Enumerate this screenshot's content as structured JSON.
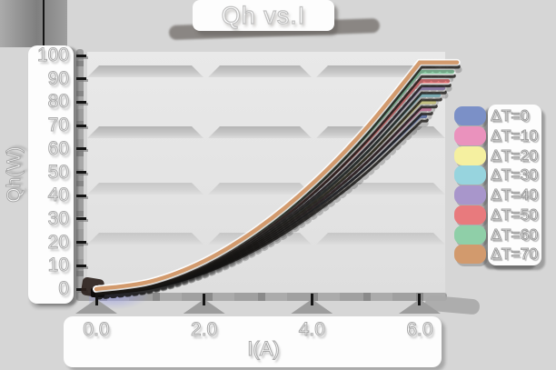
{
  "title": "Qh vs.I",
  "x_axis": {
    "label": "I(A)",
    "ticks": [
      "0.0",
      "2.0",
      "4.0",
      "6.0"
    ]
  },
  "y_axis": {
    "label": "Qh(W)",
    "ticks": [
      "0",
      "10",
      "20",
      "30",
      "40",
      "50",
      "60",
      "70",
      "80",
      "90",
      "100"
    ]
  },
  "legend": {
    "position": "right",
    "entries": [
      "ΔT=0",
      "ΔT=10",
      "ΔT=20",
      "ΔT=30",
      "ΔT=40",
      "ΔT=50",
      "ΔT=60",
      "ΔT=70"
    ]
  },
  "colors": {
    "page_bg": "#d6d6d6",
    "panel_bg": "#e4e4e4",
    "grid_band": "#c0c0c0",
    "sticker_bg": "#fdfdfd",
    "text": "#ffffff",
    "tick_mark": "#141414"
  },
  "chart_data": {
    "type": "line",
    "title": "Qh vs.I",
    "xlabel": "I(A)",
    "ylabel": "Qh(W)",
    "xlim": [
      0,
      6.5
    ],
    "ylim": [
      0,
      100
    ],
    "x": [
      0,
      1,
      2,
      3,
      4,
      5,
      6
    ],
    "series": [
      {
        "name": "ΔT=0",
        "color": "#7b90c7",
        "values": [
          0,
          2.5,
          9.2,
          19.8,
          34.3,
          52.3,
          74
        ]
      },
      {
        "name": "ΔT=10",
        "color": "#ea92bd",
        "values": [
          0,
          2.6,
          9.5,
          20.6,
          35.7,
          54.4,
          77
        ]
      },
      {
        "name": "ΔT=20",
        "color": "#f5f0a0",
        "values": [
          0,
          2.7,
          9.9,
          21.4,
          37.0,
          56.6,
          80
        ]
      },
      {
        "name": "ΔT=30",
        "color": "#97d4de",
        "values": [
          0,
          2.8,
          10.3,
          22.2,
          38.4,
          58.7,
          83
        ]
      },
      {
        "name": "ΔT=40",
        "color": "#a896cb",
        "values": [
          0,
          2.9,
          10.7,
          23.0,
          39.8,
          60.8,
          86
        ]
      },
      {
        "name": "ΔT=50",
        "color": "#e87a7d",
        "values": [
          0,
          3.0,
          11.0,
          23.9,
          41.2,
          62.9,
          89
        ]
      },
      {
        "name": "ΔT=60",
        "color": "#8fcfa8",
        "values": [
          0,
          3.1,
          11.5,
          24.9,
          43.1,
          65.8,
          93
        ]
      },
      {
        "name": "ΔT=70",
        "color": "#d29a6d",
        "values": [
          0,
          3.2,
          12.0,
          26.0,
          44.9,
          68.6,
          97
        ]
      }
    ],
    "legend_position": "right",
    "grid": "horizontal bands"
  }
}
